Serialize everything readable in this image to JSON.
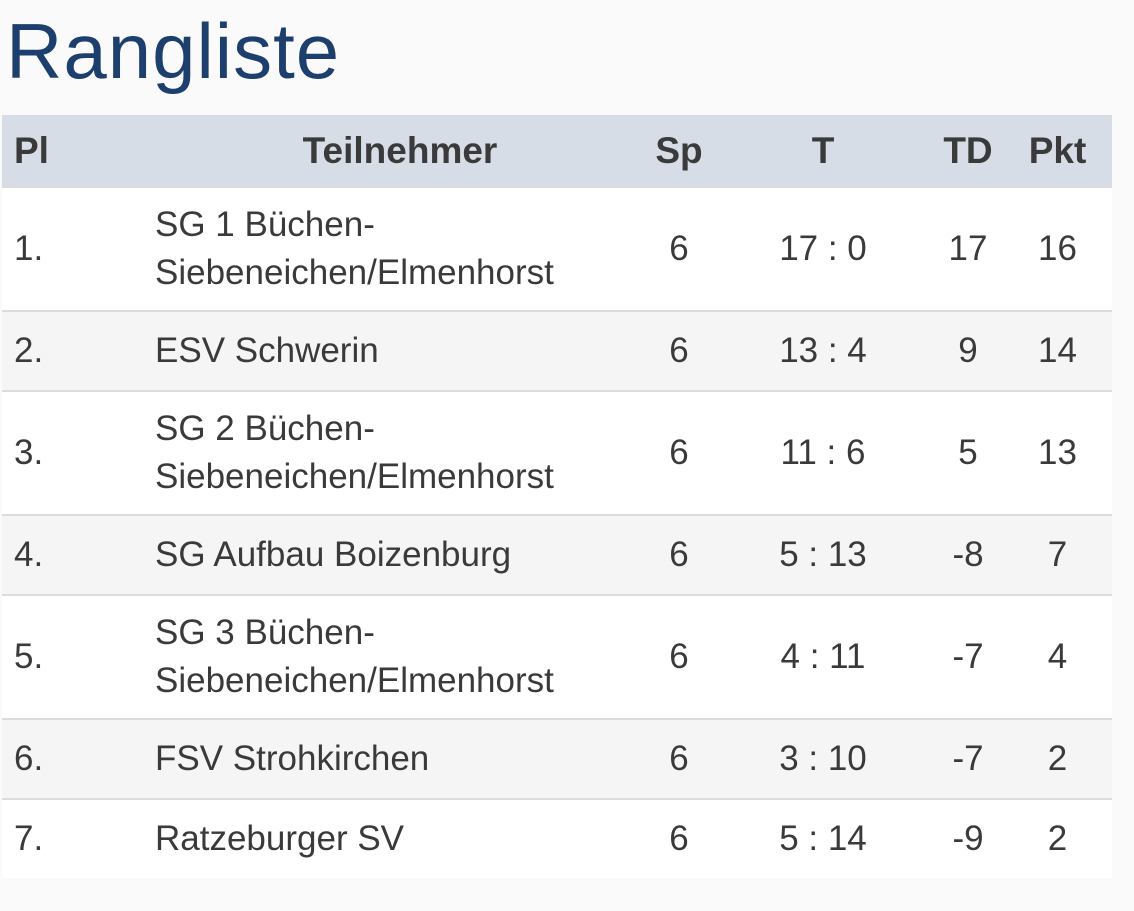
{
  "header": {
    "title": "Rangliste"
  },
  "table": {
    "columns": [
      "Pl",
      "Teilnehmer",
      "Sp",
      "T",
      "TD",
      "Pkt"
    ],
    "rows": [
      [
        "1.",
        "SG 1 Büchen-Siebeneichen/Elmenhorst",
        "6",
        "17 : 0",
        "17",
        "16"
      ],
      [
        "2.",
        "ESV Schwerin",
        "6",
        "13 : 4",
        "9",
        "14"
      ],
      [
        "3.",
        "SG 2 Büchen-Siebeneichen/Elmenhorst",
        "6",
        "11 : 6",
        "5",
        "13"
      ],
      [
        "4.",
        "SG Aufbau Boizenburg",
        "6",
        "5 : 13",
        "-8",
        "7"
      ],
      [
        "5.",
        "SG 3 Büchen-Siebeneichen/Elmenhorst",
        "6",
        "4 : 11",
        "-7",
        "4"
      ],
      [
        "6.",
        "FSV Strohkirchen",
        "6",
        "3 : 10",
        "-7",
        "2"
      ],
      [
        "7.",
        "Ratzeburger SV",
        "6",
        "5 : 14",
        "-9",
        "2"
      ]
    ]
  }
}
